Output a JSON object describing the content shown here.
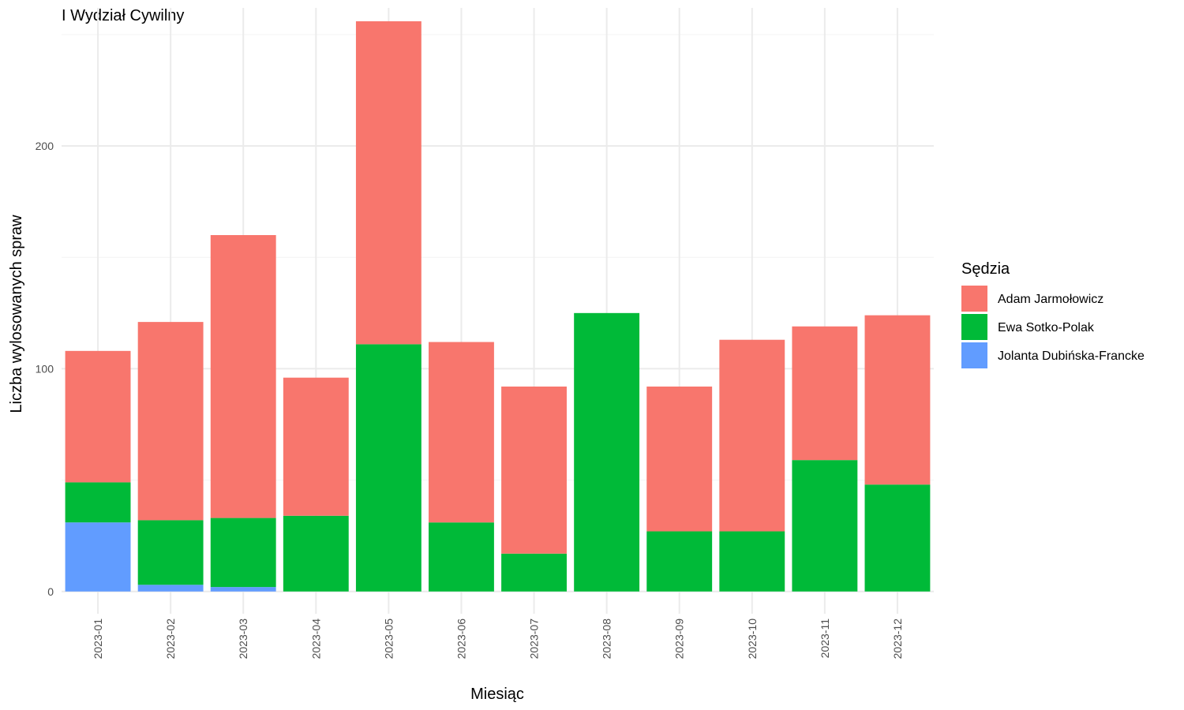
{
  "chart_data": {
    "type": "bar",
    "stacked": true,
    "title": "I Wydział Cywilny",
    "xlabel": "Miesiąc",
    "ylabel": "Liczba wylosowanych spraw",
    "ylim": [
      -10,
      262
    ],
    "yticks": [
      0,
      100,
      200
    ],
    "grid": true,
    "legend": {
      "title": "Sędzia",
      "position": "right"
    },
    "categories": [
      "2023-01",
      "2023-02",
      "2023-03",
      "2023-04",
      "2023-05",
      "2023-06",
      "2023-07",
      "2023-08",
      "2023-09",
      "2023-10",
      "2023-11",
      "2023-12"
    ],
    "series": [
      {
        "name": "Jolanta Dubińska-Francke",
        "color": "#619CFF",
        "values": [
          31,
          3,
          2,
          0,
          0,
          0,
          0,
          0,
          0,
          0,
          0,
          0
        ]
      },
      {
        "name": "Ewa Sotko-Polak",
        "color": "#00BA38",
        "values": [
          18,
          29,
          31,
          34,
          111,
          31,
          17,
          125,
          27,
          27,
          59,
          48
        ]
      },
      {
        "name": "Adam Jarmołowicz",
        "color": "#F8766D",
        "values": [
          59,
          89,
          127,
          62,
          145,
          81,
          75,
          0,
          65,
          86,
          60,
          76
        ]
      }
    ],
    "legend_order": [
      "Adam Jarmołowicz",
      "Ewa Sotko-Polak",
      "Jolanta Dubińska-Francke"
    ]
  }
}
